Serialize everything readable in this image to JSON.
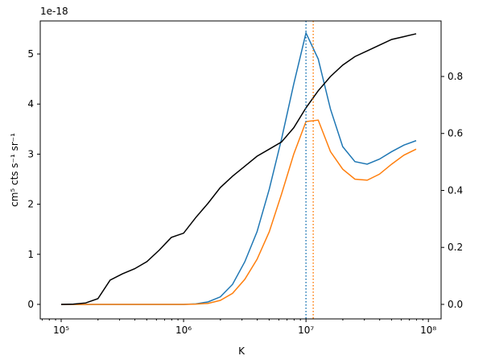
{
  "chart_data": {
    "type": "line",
    "xlabel": "K",
    "ylabel": "cm⁵ cts s⁻¹ sr⁻¹",
    "y_offset_label": "1e-18",
    "xscale": "log",
    "xlim": [
      67450,
      127000000
    ],
    "xticks": [
      {
        "value": 100000,
        "label": "10⁵"
      },
      {
        "value": 1000000,
        "label": "10⁶"
      },
      {
        "value": 10000000,
        "label": "10⁷"
      },
      {
        "value": 100000000,
        "label": "10⁸"
      }
    ],
    "ylim": [
      -0.29,
      5.66
    ],
    "yticks": [
      0,
      1,
      2,
      3,
      4,
      5
    ],
    "y2lim": [
      -0.051,
      0.995
    ],
    "y2ticks": [
      {
        "value": 0,
        "label": "0.0"
      },
      {
        "value": 0.2,
        "label": "0.2"
      },
      {
        "value": 0.4,
        "label": "0.4"
      },
      {
        "value": 0.6,
        "label": "0.6"
      },
      {
        "value": 0.8,
        "label": "0.8"
      }
    ],
    "x": [
      100000,
      125893,
      158489,
      199526,
      251189,
      316228,
      398107,
      501187,
      630957,
      794328,
      1000000,
      1258925,
      1584893,
      1995262,
      2511886,
      3162278,
      3981072,
      5011872,
      6309573,
      7943282,
      10000000,
      12589254,
      15848932,
      19952623,
      25118864,
      31622777,
      39810717,
      50118723,
      63095734,
      79432823
    ],
    "series": [
      {
        "color": "#1f77b4",
        "values": [
          0,
          0,
          0,
          0,
          0,
          0,
          0,
          0,
          0,
          0,
          0,
          0.01,
          0.05,
          0.15,
          0.4,
          0.85,
          1.45,
          2.3,
          3.3,
          4.4,
          5.42,
          4.9,
          3.9,
          3.15,
          2.85,
          2.8,
          2.9,
          3.05,
          3.18,
          3.27
        ]
      },
      {
        "color": "#ff7f0e",
        "values": [
          0,
          0,
          0,
          0,
          0,
          0,
          0,
          0,
          0,
          0,
          0,
          0.005,
          0.02,
          0.08,
          0.22,
          0.5,
          0.9,
          1.45,
          2.2,
          3.0,
          3.65,
          3.68,
          3.05,
          2.7,
          2.5,
          2.48,
          2.6,
          2.8,
          2.98,
          3.1
        ]
      },
      {
        "color": "#000000",
        "axis": "y2",
        "values": [
          0,
          0.001,
          0.005,
          0.02,
          0.085,
          0.107,
          0.125,
          0.15,
          0.19,
          0.235,
          0.25,
          0.305,
          0.355,
          0.41,
          0.45,
          0.485,
          0.52,
          0.545,
          0.57,
          0.62,
          0.69,
          0.75,
          0.8,
          0.84,
          0.87,
          0.89,
          0.91,
          0.93,
          0.94,
          0.95
        ]
      }
    ],
    "vlines": [
      {
        "x": 10000000,
        "color": "#1f77b4"
      },
      {
        "x": 11460000,
        "color": "#ff7f0e"
      }
    ]
  }
}
